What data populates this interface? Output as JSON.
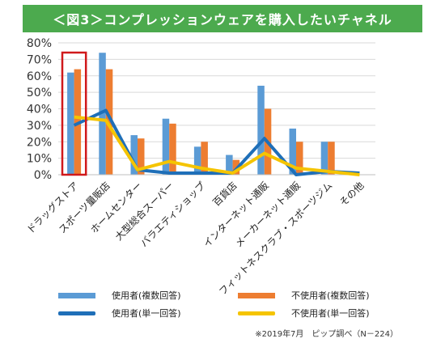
{
  "header": {
    "title": "＜図3＞コンプレッションウェアを購入したいチャネル"
  },
  "chart_data": {
    "type": "bar",
    "categories": [
      "ドラッグストア",
      "スポーツ量販店",
      "ホームセンター",
      "大型総合スーパー",
      "バラエティショップ",
      "百貨店",
      "インターネット通販",
      "メーカーネット通販",
      "フィットネスクラブ・スポーツジム",
      "その他"
    ],
    "ylim": [
      0,
      80
    ],
    "yticks": [
      "0%",
      "10%",
      "20%",
      "30%",
      "40%",
      "50%",
      "60%",
      "70%",
      "80%"
    ],
    "bar_series": [
      {
        "name": "使用者(複数回答)",
        "color": "#5b9bd5",
        "values": [
          62,
          74,
          24,
          34,
          17,
          12,
          54,
          28,
          20,
          0
        ]
      },
      {
        "name": "不使用者(複数回答)",
        "color": "#ed7d31",
        "values": [
          64,
          64,
          22,
          31,
          20,
          9,
          40,
          20,
          20,
          0
        ]
      }
    ],
    "line_series": [
      {
        "name": "使用者(単一回答)",
        "color": "#1f6fb8",
        "values": [
          30,
          39,
          3,
          1,
          1,
          1,
          22,
          0,
          2,
          1
        ]
      },
      {
        "name": "不使用者(単一回答)",
        "color": "#f5c400",
        "values": [
          35,
          33,
          3,
          8,
          4,
          1,
          13,
          4,
          2,
          0
        ]
      }
    ],
    "highlight_category": "ドラッグストア",
    "highlight_color": "#d0191b"
  },
  "footer": {
    "source": "※2019年7月　ピップ調べ（N－224）"
  }
}
